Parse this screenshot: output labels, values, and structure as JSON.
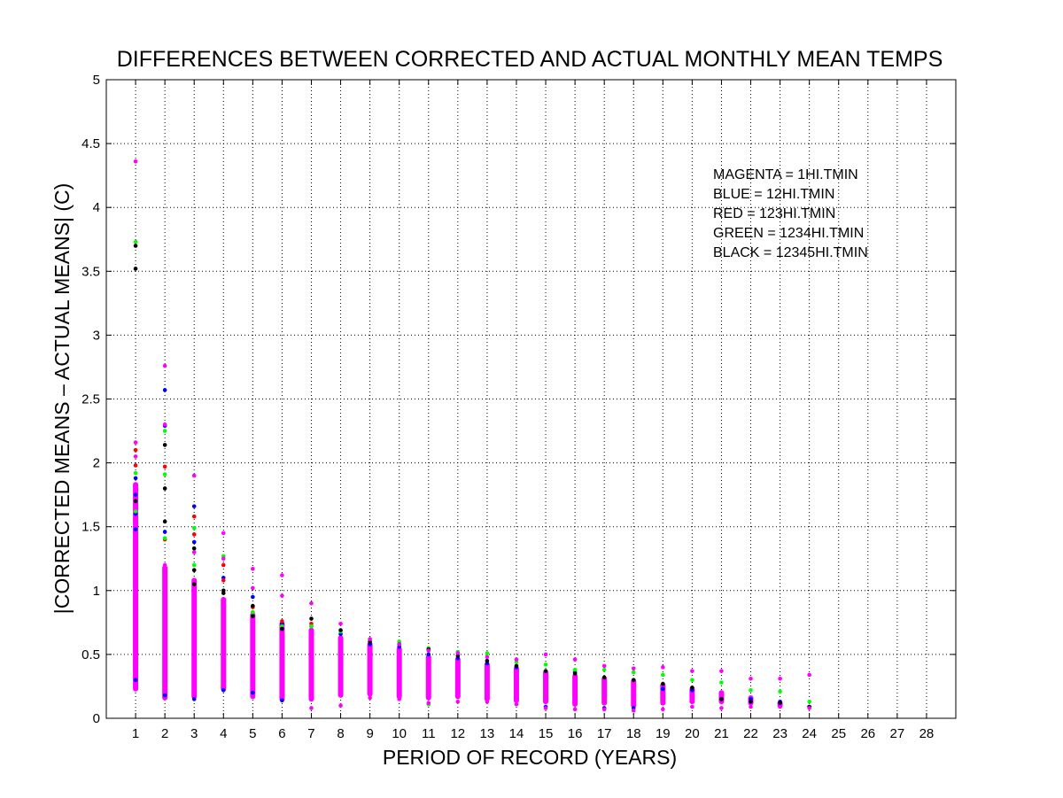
{
  "chart_data": {
    "type": "scatter",
    "title": "DIFFERENCES BETWEEN CORRECTED AND ACTUAL MONTHLY MEAN TEMPS",
    "xlabel": "PERIOD OF RECORD (YEARS)",
    "ylabel": "|CORRECTED MEANS – ACTUAL MEANS| (C)",
    "xlim": [
      0,
      29
    ],
    "ylim": [
      0,
      5
    ],
    "xticks": [
      1,
      2,
      3,
      4,
      5,
      6,
      7,
      8,
      9,
      10,
      11,
      12,
      13,
      14,
      15,
      16,
      17,
      18,
      19,
      20,
      21,
      22,
      23,
      24,
      25,
      26,
      27,
      28
    ],
    "yticks": [
      0,
      0.5,
      1,
      1.5,
      2,
      2.5,
      3,
      3.5,
      4,
      4.5,
      5
    ],
    "ytick_labels": [
      "0",
      "0.5",
      "1",
      "1.5",
      "2",
      "2.5",
      "3",
      "3.5",
      "4",
      "4.5",
      "5"
    ],
    "grid": true,
    "annotations": [
      "MAGENTA = 1HI.TMIN",
      "BLUE = 12HI.TMIN",
      "RED = 123HI.TMIN",
      "GREEN = 1234HI.TMIN",
      "BLACK = 12345HI.TMIN"
    ],
    "series": [
      {
        "color": "#0000ff",
        "x": [
          1,
          1,
          1,
          1,
          1,
          2,
          2,
          2,
          2,
          3,
          3,
          3,
          4,
          4,
          5,
          5,
          6,
          6,
          7,
          8,
          9,
          10,
          11,
          12,
          13,
          14,
          15,
          16,
          17,
          18,
          19,
          20,
          21,
          22,
          23
        ],
        "y": [
          1.88,
          1.75,
          1.6,
          1.48,
          0.3,
          2.57,
          2.29,
          1.46,
          0.18,
          1.66,
          1.38,
          0.15,
          1.1,
          0.22,
          0.95,
          0.2,
          0.74,
          0.14,
          0.72,
          0.66,
          0.58,
          0.56,
          0.5,
          0.47,
          0.43,
          0.4,
          0.09,
          0.36,
          0.08,
          0.08,
          0.23,
          0.22,
          0.15,
          0.15,
          0.13
        ]
      },
      {
        "color": "#ff0000",
        "x": [
          1,
          1,
          2,
          2,
          3,
          3,
          4,
          4,
          5,
          5,
          6,
          7
        ],
        "y": [
          2.1,
          1.98,
          1.97,
          1.4,
          1.58,
          1.44,
          1.2,
          1.08,
          0.87,
          0.83,
          0.76,
          0.74
        ]
      },
      {
        "color": "#00ff00",
        "x": [
          1,
          1,
          1,
          2,
          2,
          2,
          3,
          3,
          4,
          5,
          6,
          7,
          8,
          9,
          10,
          11,
          11,
          12,
          13,
          14,
          15,
          16,
          17,
          18,
          19,
          20,
          21,
          22,
          23,
          24
        ],
        "y": [
          3.73,
          1.92,
          1.62,
          2.25,
          1.91,
          1.41,
          1.49,
          1.2,
          1.27,
          0.83,
          0.72,
          0.72,
          0.68,
          0.62,
          0.6,
          0.55,
          0.11,
          0.52,
          0.51,
          0.44,
          0.42,
          0.38,
          0.38,
          0.36,
          0.34,
          0.3,
          0.28,
          0.22,
          0.21,
          0.13
        ]
      },
      {
        "color": "#000000",
        "x": [
          1,
          1,
          1,
          2,
          2,
          2,
          3,
          3,
          3,
          4,
          4,
          5,
          5,
          6,
          7,
          8,
          9,
          10,
          11,
          12,
          13,
          14,
          15,
          16,
          17,
          18,
          19,
          20,
          21,
          22,
          23,
          24
        ],
        "y": [
          3.7,
          3.52,
          1.7,
          2.14,
          1.8,
          1.54,
          1.33,
          1.16,
          1.05,
          1.0,
          0.98,
          0.88,
          0.8,
          0.7,
          0.78,
          0.69,
          0.6,
          0.58,
          0.54,
          0.49,
          0.45,
          0.41,
          0.37,
          0.35,
          0.32,
          0.3,
          0.27,
          0.24,
          0.15,
          0.13,
          0.12,
          0.09
        ]
      },
      {
        "color": "#ff00ff",
        "x": [
          1,
          1,
          1,
          1,
          2,
          2,
          2,
          3,
          3,
          4,
          4,
          5,
          5,
          6,
          6,
          7,
          7,
          8,
          8,
          9,
          9,
          10,
          10,
          11,
          11,
          12,
          12,
          13,
          13,
          14,
          14,
          15,
          15,
          16,
          16,
          17,
          17,
          18,
          18,
          19,
          19,
          20,
          20,
          21,
          21,
          22,
          22,
          23,
          23,
          24,
          24
        ],
        "y": [
          4.36,
          2.16,
          2.05,
          1.4,
          2.76,
          2.3,
          1.2,
          1.9,
          1.3,
          1.45,
          1.25,
          1.17,
          1.02,
          1.12,
          0.96,
          0.9,
          0.08,
          0.74,
          0.1,
          0.62,
          0.16,
          0.58,
          0.15,
          0.53,
          0.12,
          0.51,
          0.13,
          0.48,
          0.13,
          0.46,
          0.11,
          0.5,
          0.08,
          0.46,
          0.07,
          0.41,
          0.07,
          0.39,
          0.06,
          0.4,
          0.07,
          0.37,
          0.09,
          0.37,
          0.08,
          0.31,
          0.09,
          0.31,
          0.09,
          0.34,
          0.08
        ]
      }
    ],
    "dense_bands": {
      "color": "#ff00ff",
      "x": [
        1,
        2,
        3,
        4,
        5,
        6,
        7,
        8,
        9,
        10,
        11,
        12,
        13,
        14,
        15,
        16,
        17,
        18,
        19,
        20,
        21,
        22,
        23,
        24
      ],
      "low": [
        0.21,
        0.14,
        0.15,
        0.21,
        0.15,
        0.13,
        0.13,
        0.16,
        0.17,
        0.15,
        0.14,
        0.15,
        0.13,
        0.12,
        0.11,
        0.09,
        0.1,
        0.08,
        0.1,
        0.11,
        0.11,
        0.1,
        0.08,
        0.09
      ],
      "high": [
        1.85,
        1.2,
        1.1,
        0.95,
        0.83,
        0.76,
        0.71,
        0.65,
        0.6,
        0.56,
        0.5,
        0.48,
        0.44,
        0.41,
        0.38,
        0.35,
        0.33,
        0.31,
        0.28,
        0.25,
        0.22,
        0.18,
        0.14,
        0.1
      ]
    }
  }
}
